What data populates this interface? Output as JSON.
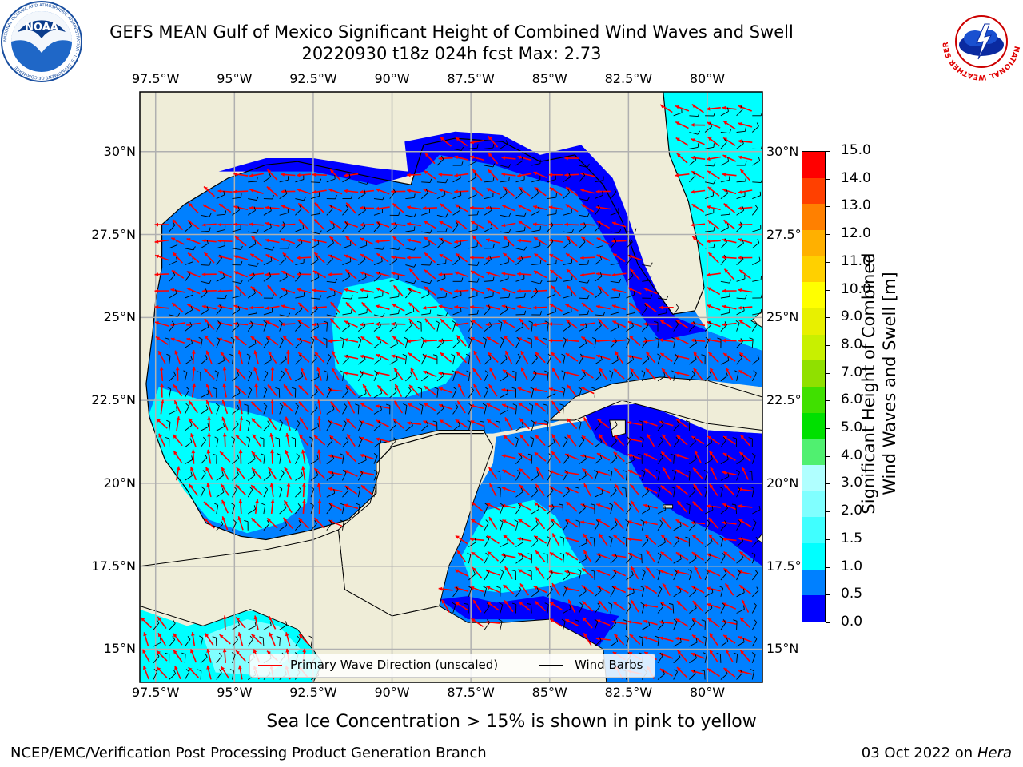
{
  "title": {
    "line1": "GEFS MEAN Gulf of Mexico Significant Height of Combined Wind Waves and Swell",
    "line2": "20220930 t18z 024h fcst   Max: 2.73"
  },
  "logos": {
    "noaa": {
      "text": "NOAA",
      "ring_text": "NATIONAL OCEANIC AND ATMOSPHERIC ADMINISTRATION · U.S. DEPARTMENT OF COMMERCE"
    },
    "nws": {
      "ring_text": "NATIONAL WEATHER SERVICE"
    }
  },
  "map": {
    "lon_ticks": [
      "97.5°W",
      "95°W",
      "92.5°W",
      "90°W",
      "87.5°W",
      "85°W",
      "82.5°W",
      "80°W"
    ],
    "lon_values": [
      -97.5,
      -95,
      -92.5,
      -90,
      -87.5,
      -85,
      -82.5,
      -80
    ],
    "lat_ticks": [
      "30°N",
      "27.5°N",
      "25°N",
      "22.5°N",
      "20°N",
      "17.5°N",
      "15°N"
    ],
    "lat_values": [
      30,
      27.5,
      25,
      22.5,
      20,
      17.5,
      15
    ],
    "lon_range": [
      -98,
      -78.25
    ],
    "lat_range": [
      14,
      31.8
    ],
    "land_color": "#efedd8",
    "grid_color": "#b0b0b0"
  },
  "legend": {
    "primary_wave": "Primary Wave Direction (unscaled)",
    "wind_barbs": "Wind Barbs",
    "primary_wave_color": "#ff0000",
    "wind_barb_color": "#000000"
  },
  "colorbar": {
    "title_line1": "Significant Height of Combined",
    "title_line2": "Wind Waves and Swell [m]",
    "labels": [
      "15.0",
      "14.0",
      "13.0",
      "12.0",
      "11.0",
      "10.0",
      "9.0",
      "8.0",
      "7.0",
      "6.0",
      "5.0",
      "4.0",
      "3.0",
      "2.0",
      "1.5",
      "1.0",
      "0.5",
      "0.0"
    ],
    "bands": [
      {
        "range": "0.0-0.5",
        "color": "#0000ff"
      },
      {
        "range": "0.5-1.0",
        "color": "#0080ff"
      },
      {
        "range": "1.0-1.5",
        "color": "#00ffff"
      },
      {
        "range": "1.5-2.0",
        "color": "#40ffff"
      },
      {
        "range": "2.0-2.5",
        "color": "#80ffff"
      },
      {
        "range": "2.5-3.0",
        "color": "#b0ffff"
      },
      {
        "range": "3.0-4.0",
        "color": "#50f070"
      },
      {
        "range": "4.0-5.0",
        "color": "#00e000"
      },
      {
        "range": "5.0-6.0",
        "color": "#40e000"
      },
      {
        "range": "6.0-7.0",
        "color": "#90e000"
      },
      {
        "range": "7.0-8.0",
        "color": "#c8f000"
      },
      {
        "range": "8.0-9.0",
        "color": "#e8f000"
      },
      {
        "range": "9.0-10.0",
        "color": "#ffff00"
      },
      {
        "range": "10.0-11.0",
        "color": "#ffd000"
      },
      {
        "range": "11.0-12.0",
        "color": "#ffb000"
      },
      {
        "range": "12.0-13.0",
        "color": "#ff8000"
      },
      {
        "range": "13.0-14.0",
        "color": "#ff4000"
      },
      {
        "range": "14.0-15.0",
        "color": "#ff0000"
      }
    ]
  },
  "caption": "Sea Ice Concentration > 15% is shown in pink to yellow",
  "footer": {
    "left": "NCEP/EMC/Verification Post Processing Product Generation Branch",
    "right_prefix": "03 Oct 2022 on ",
    "right_machine": "Hera"
  }
}
